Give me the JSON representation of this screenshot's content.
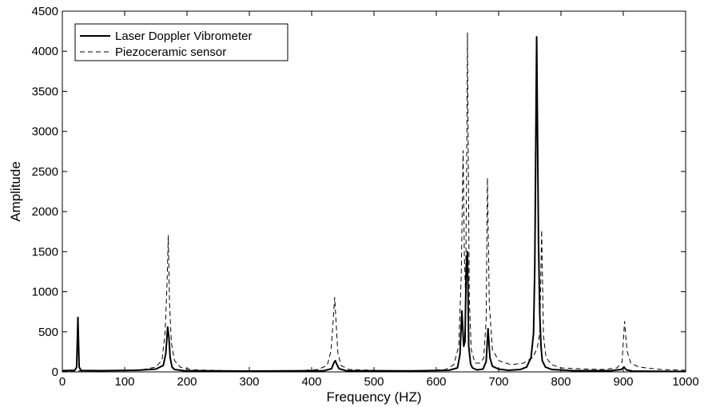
{
  "chart_data": {
    "type": "line",
    "xlabel": "Frequency (HZ)",
    "ylabel": "Amplitude",
    "xlim": [
      0,
      1000
    ],
    "ylim": [
      0,
      4500
    ],
    "xticks": [
      0,
      100,
      200,
      300,
      400,
      500,
      600,
      700,
      800,
      900,
      1000
    ],
    "yticks": [
      0,
      500,
      1000,
      1500,
      2000,
      2500,
      3000,
      3500,
      4000,
      4500
    ],
    "grid": false,
    "legend_position": "top-left",
    "series": [
      {
        "name": "Laser Doppler Vibrometer",
        "style": "solid",
        "color": "#000000",
        "x": [
          0,
          20,
          23,
          25,
          27,
          30,
          60,
          120,
          150,
          162,
          166,
          169,
          171,
          173,
          176,
          180,
          195,
          300,
          420,
          432,
          436,
          438,
          440,
          444,
          455,
          560,
          620,
          634,
          638,
          641,
          644,
          646,
          648,
          650,
          652,
          655,
          658,
          665,
          675,
          680,
          683,
          686,
          690,
          700,
          715,
          735,
          745,
          752,
          756,
          758,
          761,
          764,
          766,
          768,
          770,
          775,
          785,
          820,
          880,
          897,
          901,
          905,
          915,
          950,
          1000
        ],
        "y": [
          15,
          20,
          60,
          680,
          60,
          18,
          15,
          20,
          35,
          80,
          230,
          560,
          430,
          180,
          60,
          30,
          15,
          10,
          15,
          40,
          120,
          140,
          100,
          40,
          15,
          12,
          20,
          50,
          220,
          760,
          320,
          380,
          1300,
          1500,
          320,
          100,
          50,
          25,
          35,
          130,
          540,
          180,
          70,
          35,
          20,
          30,
          60,
          180,
          480,
          1300,
          4180,
          1600,
          720,
          320,
          140,
          60,
          30,
          15,
          15,
          30,
          60,
          25,
          10,
          8,
          5
        ]
      },
      {
        "name": "Piezoceramic sensor",
        "style": "dashed",
        "color": "#000000",
        "x": [
          0,
          30,
          60,
          100,
          130,
          150,
          160,
          165,
          168,
          170,
          172,
          175,
          180,
          190,
          210,
          260,
          320,
          380,
          410,
          425,
          431,
          434,
          437,
          439,
          442,
          447,
          460,
          520,
          580,
          615,
          628,
          636,
          640,
          643,
          645,
          647,
          649,
          650,
          651,
          653,
          656,
          662,
          670,
          676,
          680,
          682,
          685,
          690,
          700,
          720,
          740,
          755,
          762,
          766,
          769,
          772,
          776,
          785,
          800,
          840,
          870,
          890,
          898,
          902,
          906,
          912,
          925,
          960,
          1000
        ],
        "y": [
          10,
          12,
          15,
          20,
          30,
          60,
          150,
          500,
          1100,
          1700,
          850,
          360,
          140,
          55,
          25,
          15,
          12,
          15,
          30,
          80,
          260,
          580,
          930,
          650,
          240,
          80,
          30,
          15,
          15,
          30,
          90,
          320,
          1200,
          2760,
          1450,
          950,
          2900,
          4230,
          3000,
          900,
          280,
          110,
          110,
          170,
          650,
          2420,
          850,
          280,
          140,
          90,
          110,
          180,
          300,
          480,
          1770,
          450,
          180,
          90,
          50,
          35,
          30,
          50,
          120,
          630,
          260,
          110,
          60,
          30,
          20
        ]
      }
    ]
  }
}
